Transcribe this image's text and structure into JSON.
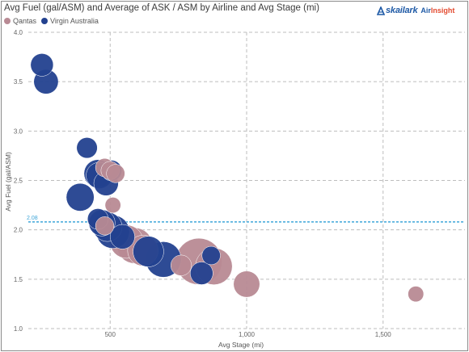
{
  "header": {
    "title": "Avg Fuel (gal/ASM) and Average of ASK / ASM by Airline and Avg Stage (mi)"
  },
  "legend": {
    "items": [
      {
        "label": "Qantas",
        "color": "#b88a94"
      },
      {
        "label": "Virgin Australia",
        "color": "#23418f"
      }
    ]
  },
  "logo": {
    "brand": "skailark",
    "air": "Air",
    "insight": "Insight"
  },
  "colors": {
    "qantas": "#b88a94",
    "virgin": "#23418f",
    "refline": "#3fa6d9",
    "grid": "#bdbdbd"
  },
  "chart_data": {
    "type": "scatter",
    "title": "Avg Fuel (gal/ASM) and Average of ASK / ASM by Airline and Avg Stage (mi)",
    "xlabel": "Avg Stage (mi)",
    "ylabel": "Avg Fuel (gal/ASM)",
    "xlim": [
      200,
      1800
    ],
    "ylim": [
      1.0,
      4.0
    ],
    "x_ticks": [
      500,
      1000,
      1500
    ],
    "x_tick_labels": [
      "500",
      "1,000",
      "1,500"
    ],
    "y_ticks": [
      1.0,
      1.5,
      2.0,
      2.5,
      3.0,
      3.5,
      4.0
    ],
    "y_tick_labels": [
      "1.0",
      "1.5",
      "2.0",
      "2.5",
      "3.0",
      "3.5",
      "4.0"
    ],
    "grid": true,
    "legend_position": "top-left",
    "reference_line": {
      "axis": "y",
      "value": 2.08,
      "label": "2.08"
    },
    "size_measure_note": "bubble size encodes Average of ASK / ASM (relative)",
    "series": [
      {
        "name": "Qantas",
        "color": "#b88a94",
        "points": [
          {
            "x": 480,
            "y": 2.63,
            "size": 3
          },
          {
            "x": 500,
            "y": 2.6,
            "size": 3
          },
          {
            "x": 520,
            "y": 2.57,
            "size": 3
          },
          {
            "x": 510,
            "y": 2.25,
            "size": 2
          },
          {
            "x": 480,
            "y": 2.04,
            "size": 3
          },
          {
            "x": 560,
            "y": 1.88,
            "size": 12
          },
          {
            "x": 590,
            "y": 1.84,
            "size": 14
          },
          {
            "x": 620,
            "y": 1.79,
            "size": 10
          },
          {
            "x": 760,
            "y": 1.64,
            "size": 4
          },
          {
            "x": 825,
            "y": 1.68,
            "size": 25
          },
          {
            "x": 880,
            "y": 1.63,
            "size": 15
          },
          {
            "x": 1000,
            "y": 1.45,
            "size": 7
          },
          {
            "x": 1620,
            "y": 1.35,
            "size": 2
          }
        ]
      },
      {
        "name": "Virgin Australia",
        "color": "#23418f",
        "points": [
          {
            "x": 250,
            "y": 3.67,
            "size": 5
          },
          {
            "x": 265,
            "y": 3.5,
            "size": 6
          },
          {
            "x": 415,
            "y": 2.83,
            "size": 4
          },
          {
            "x": 455,
            "y": 2.57,
            "size": 8
          },
          {
            "x": 460,
            "y": 2.55,
            "size": 7
          },
          {
            "x": 505,
            "y": 2.6,
            "size": 4
          },
          {
            "x": 485,
            "y": 2.47,
            "size": 6
          },
          {
            "x": 390,
            "y": 2.33,
            "size": 8
          },
          {
            "x": 455,
            "y": 2.11,
            "size": 4
          },
          {
            "x": 470,
            "y": 2.07,
            "size": 7
          },
          {
            "x": 490,
            "y": 2.03,
            "size": 9
          },
          {
            "x": 510,
            "y": 1.98,
            "size": 12
          },
          {
            "x": 545,
            "y": 1.93,
            "size": 6
          },
          {
            "x": 640,
            "y": 1.78,
            "size": 10
          },
          {
            "x": 695,
            "y": 1.7,
            "size": 14
          },
          {
            "x": 870,
            "y": 1.74,
            "size": 3
          },
          {
            "x": 835,
            "y": 1.56,
            "size": 5
          }
        ]
      }
    ]
  }
}
